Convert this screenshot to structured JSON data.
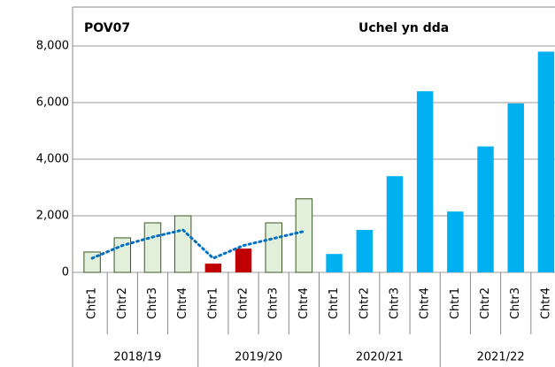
{
  "chart_data": {
    "type": "bar",
    "annotations": [
      "POV07",
      "Uchel yn dda"
    ],
    "categories": [
      "Chtr1",
      "Chtr2",
      "Chtr3",
      "Chtr4",
      "Chtr1",
      "Chtr2",
      "Chtr3",
      "Chtr4",
      "Chtr1",
      "Chtr2",
      "Chtr3",
      "Chtr4",
      "Chtr1",
      "Chtr2",
      "Chtr3",
      "Chtr4"
    ],
    "groups": [
      "2018/19",
      "2019/20",
      "2020/21",
      "2021/22"
    ],
    "series": [
      {
        "type": "bar",
        "values": [
          720,
          1220,
          1750,
          2000,
          310,
          840,
          1750,
          2600,
          650,
          1500,
          3400,
          6400,
          2150,
          4450,
          5970,
          7800
        ],
        "colors": [
          "#e2efda",
          "#e2efda",
          "#e2efda",
          "#e2efda",
          "#c00000",
          "#c00000",
          "#e2efda",
          "#e2efda",
          "#00b0f0",
          "#00b0f0",
          "#00b0f0",
          "#00b0f0",
          "#00b0f0",
          "#00b0f0",
          "#00b0f0",
          "#00b0f0"
        ]
      },
      {
        "type": "line",
        "color": "#0070c0",
        "dashed": true,
        "values": [
          500,
          950,
          1250,
          1500,
          500,
          950,
          1200,
          1450,
          null,
          null,
          null,
          null,
          null,
          null,
          null,
          null
        ]
      }
    ],
    "ylim": [
      0,
      8000
    ],
    "yticks": [
      0,
      {
        "value": 2000,
        "label": "2,000"
      },
      {
        "value": 4000,
        "label": "4,000"
      },
      {
        "value": 6000,
        "label": "6,000"
      },
      {
        "value": 8000,
        "label": "8,000"
      }
    ],
    "grid": true
  }
}
